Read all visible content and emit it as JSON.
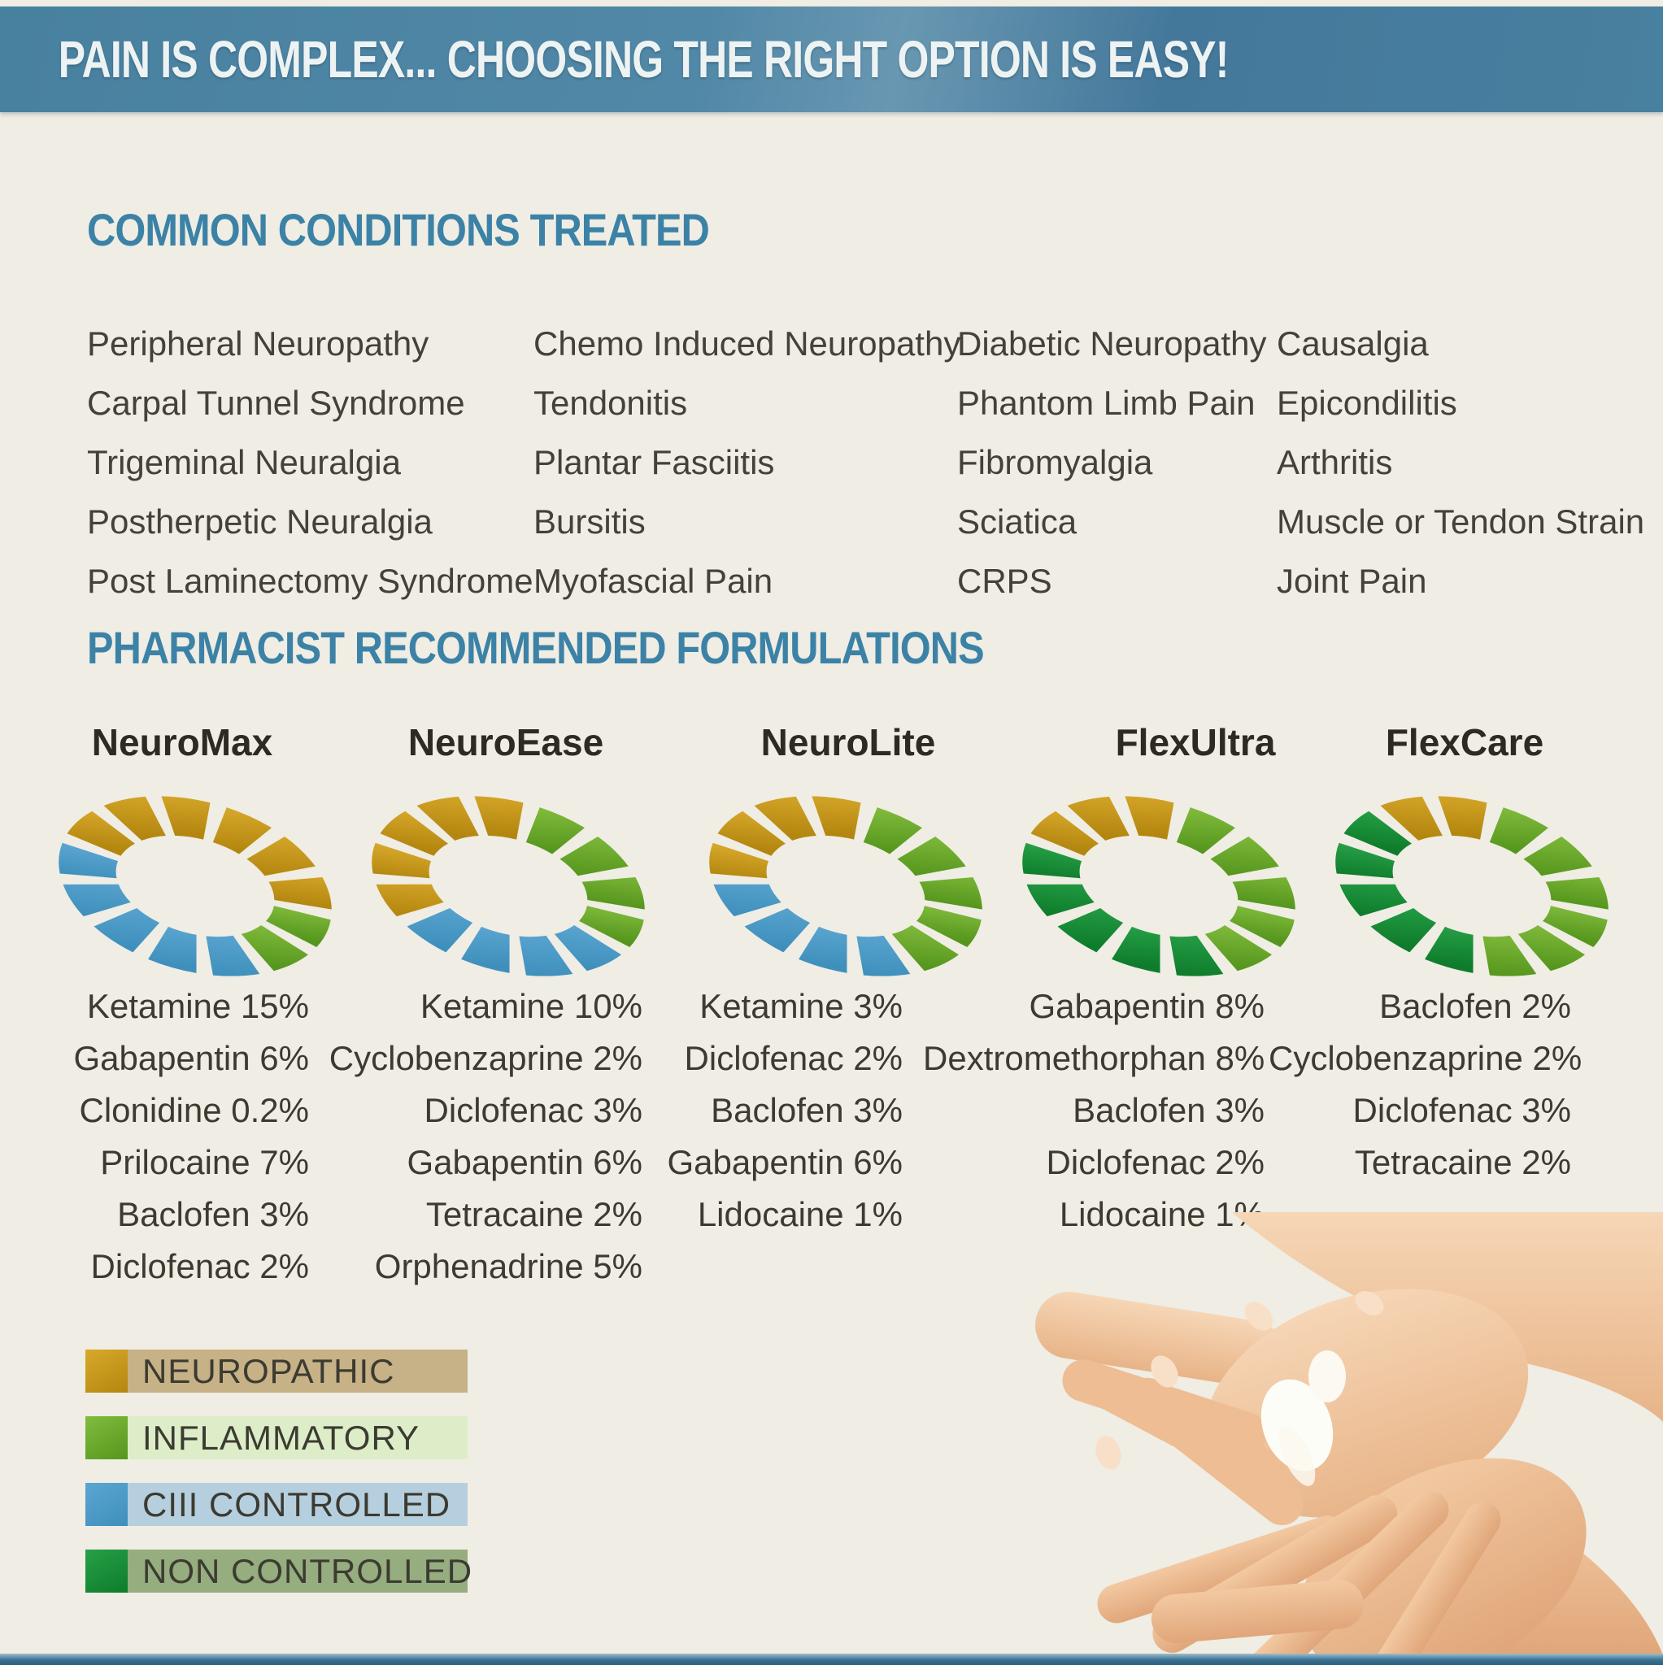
{
  "header": {
    "title": "PAIN IS COMPLEX... CHOOSING THE RIGHT OPTION IS EASY!"
  },
  "section_headings": {
    "conditions": "COMMON CONDITIONS TREATED",
    "formulations": "PHARMACIST RECOMMENDED FORMULATIONS"
  },
  "conditions": {
    "rows": [
      [
        "Peripheral Neuropathy",
        "Chemo Induced Neuropathy",
        "Diabetic Neuropathy",
        "Causalgia"
      ],
      [
        "Carpal Tunnel Syndrome",
        "Tendonitis",
        "Phantom Limb Pain",
        "Epicondilitis"
      ],
      [
        "Trigeminal Neuralgia",
        "Plantar Fasciitis",
        "Fibromyalgia",
        "Arthritis"
      ],
      [
        "Postherpetic Neuralgia",
        "Bursitis",
        "Sciatica",
        "Muscle or Tendon Strain"
      ],
      [
        "Post Laminectomy Syndrome",
        "Myofascial Pain",
        "CRPS",
        "Joint Pain"
      ]
    ]
  },
  "formulations": {
    "products": [
      {
        "name": "NeuroMax",
        "ingredients": [
          "Ketamine 15%",
          "Gabapentin 6%",
          "Clonidine 0.2%",
          "Prilocaine 7%",
          "Baclofen 3%",
          "Diclofenac 2%"
        ],
        "segments": [
          "neuropathic",
          "neuropathic",
          "neuropathic",
          "inflammatory",
          "inflammatory",
          "ciii",
          "ciii",
          "ciii",
          "ciii",
          "ciii",
          "neuropathic",
          "neuropathic",
          "neuropathic"
        ]
      },
      {
        "name": "NeuroEase",
        "ingredients": [
          "Ketamine 10%",
          "Cyclobenzaprine 2%",
          "Diclofenac 3%",
          "Gabapentin 6%",
          "Tetracaine 2%",
          "Orphenadrine 5%"
        ],
        "segments": [
          "inflammatory",
          "inflammatory",
          "inflammatory",
          "inflammatory",
          "ciii",
          "ciii",
          "ciii",
          "ciii",
          "neuropathic",
          "neuropathic",
          "neuropathic",
          "neuropathic",
          "neuropathic"
        ]
      },
      {
        "name": "NeuroLite",
        "ingredients": [
          "Ketamine 3%",
          "Diclofenac 2%",
          "Baclofen 3%",
          "Gabapentin 6%",
          "Lidocaine 1%"
        ],
        "segments": [
          "inflammatory",
          "inflammatory",
          "inflammatory",
          "inflammatory",
          "inflammatory",
          "ciii",
          "ciii",
          "ciii",
          "ciii",
          "neuropathic",
          "neuropathic",
          "neuropathic",
          "neuropathic"
        ]
      },
      {
        "name": "FlexUltra",
        "ingredients": [
          "Gabapentin 8%",
          "Dextromethorphan 8%",
          "Baclofen 3%",
          "Diclofenac 2%",
          "Lidocaine 1%"
        ],
        "segments": [
          "inflammatory",
          "inflammatory",
          "inflammatory",
          "inflammatory",
          "inflammatory",
          "noncontrolled",
          "noncontrolled",
          "noncontrolled",
          "noncontrolled",
          "noncontrolled",
          "neuropathic",
          "neuropathic",
          "neuropathic"
        ]
      },
      {
        "name": "FlexCare",
        "ingredients": [
          "Baclofen 2%",
          "Cyclobenzaprine 2%",
          "Diclofenac 3%",
          "Tetracaine 2%"
        ],
        "segments": [
          "inflammatory",
          "inflammatory",
          "inflammatory",
          "inflammatory",
          "inflammatory",
          "inflammatory",
          "noncontrolled",
          "noncontrolled",
          "noncontrolled",
          "noncontrolled",
          "noncontrolled",
          "neuropathic",
          "neuropathic"
        ]
      }
    ]
  },
  "categories": {
    "neuropathic": {
      "label": "NEUROPATHIC",
      "light": "#d8a92b",
      "dark": "#b3860f",
      "band": "#c7b186"
    },
    "inflammatory": {
      "label": "INFLAMMATORY",
      "light": "#82bc3d",
      "dark": "#55961d",
      "band": "#dcedc8"
    },
    "ciii": {
      "label": "CIII CONTROLLED",
      "light": "#5ba6d1",
      "dark": "#3f8fbc",
      "band": "#b6cfdf"
    },
    "noncontrolled": {
      "label": "NON CONTROLLED",
      "light": "#27a047",
      "dark": "#0e7c2b",
      "band": "#95ad7f"
    }
  },
  "colors": {
    "background": "#efede4",
    "header_bar": "#48809f",
    "header_text": "#edf3f2",
    "heading": "#3c82a6",
    "body_text": "#45403a",
    "bottom_bar": "#3a7294"
  }
}
